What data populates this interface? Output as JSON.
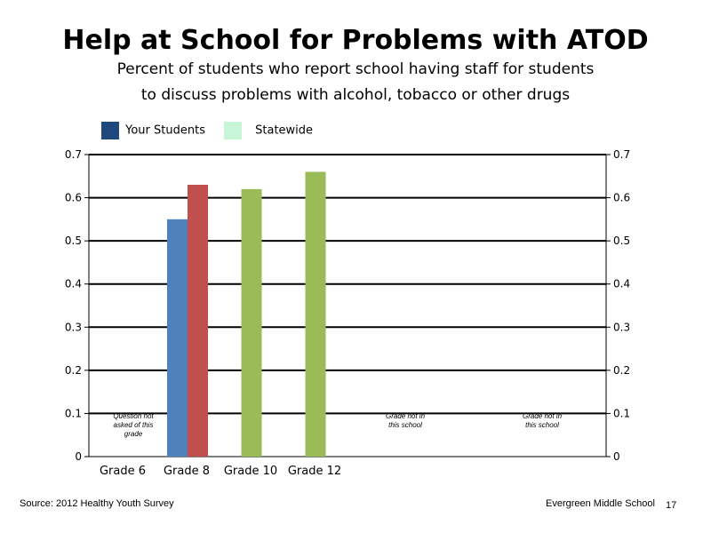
{
  "title": "Help at School for Problems with ATOD",
  "subtitle_line1": "Percent of students who report school having staff for students",
  "subtitle_line2": "to discuss problems with alcohol, tobacco or other drugs",
  "legend": [
    {
      "label": "Your Students",
      "color": "#1f497d"
    },
    {
      "label": "Statewide",
      "color": "#c6f5d8"
    }
  ],
  "footer": {
    "source": "Source: 2012 Healthy Youth Survey",
    "school": "Evergreen Middle  School",
    "page": "17"
  },
  "chart_data": {
    "type": "bar",
    "categories": [
      "Grade 6",
      "Grade 8",
      "Grade 10",
      "Grade 12",
      "",
      ""
    ],
    "ylim": [
      0,
      0.7
    ],
    "yticks": [
      "0",
      "0.1",
      "0.2",
      "0.3",
      "0.4",
      "0.5",
      "0.6",
      "0.7"
    ],
    "grid": true,
    "series": [
      {
        "name": "Your Students",
        "values": [
          null,
          0.55,
          null,
          null,
          null,
          null
        ],
        "color": "#4f81bd"
      },
      {
        "name": "Statewide",
        "values": [
          null,
          0.63,
          0.62,
          0.66,
          null,
          null
        ],
        "color": "#9bbb59"
      }
    ],
    "statewide_grade8_color": "#c0504d",
    "notes": [
      {
        "category_index": 0,
        "lines": [
          "Question not",
          "asked of this",
          "grade"
        ]
      },
      {
        "category_index": 4,
        "lines": [
          "Grade not in",
          "this school"
        ]
      },
      {
        "category_index": 5,
        "lines": [
          "Grade not in",
          "this school"
        ]
      }
    ]
  }
}
